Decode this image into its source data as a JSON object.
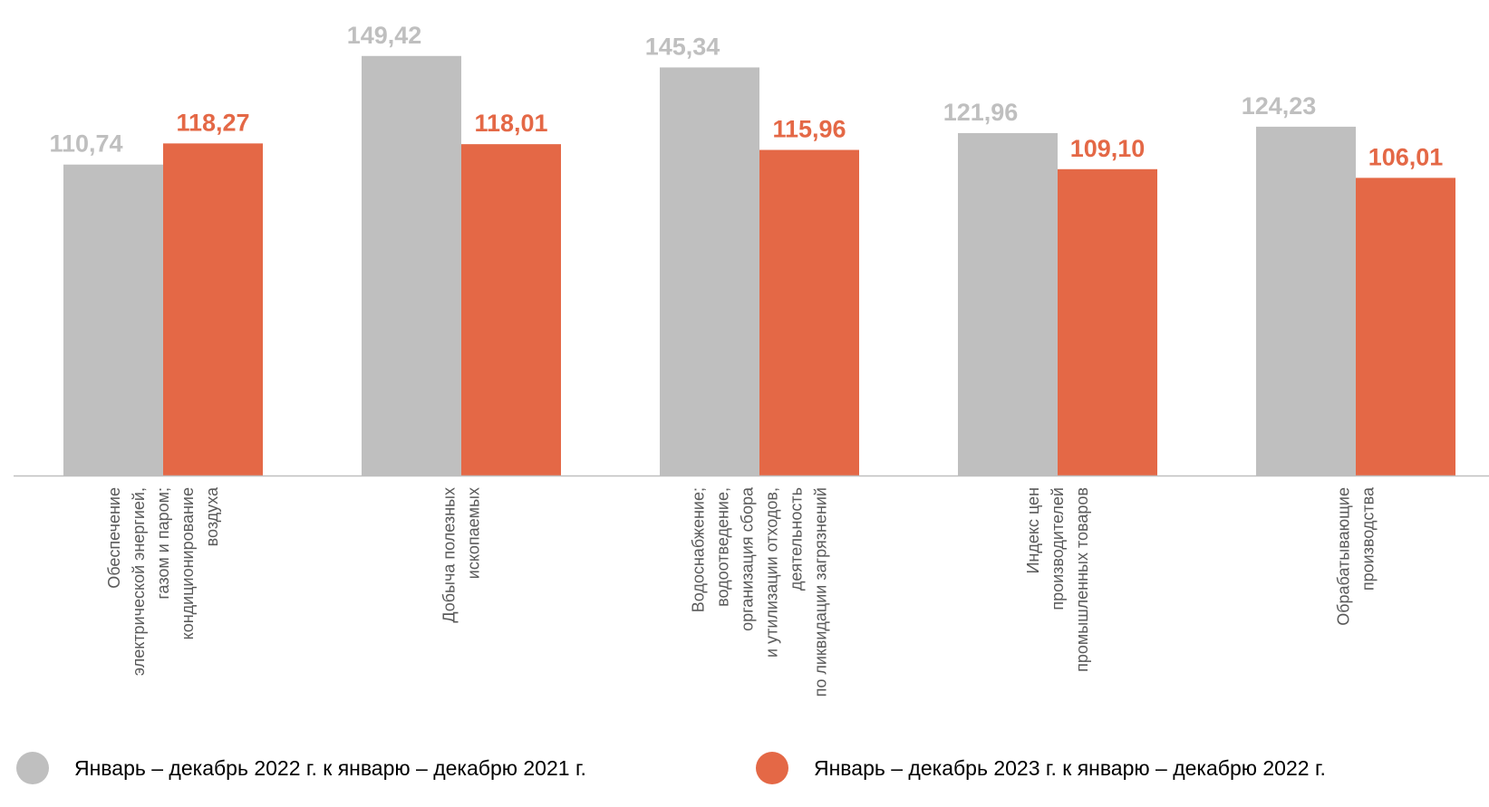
{
  "chart_data": {
    "type": "bar",
    "categories": [
      [
        "Обеспечение",
        "электрической энергией,",
        "газом и паром;",
        "кондиционирование",
        "воздуха"
      ],
      [
        "Добыча полезных",
        "ископаемых"
      ],
      [
        "Водоснабжение;",
        "водоотведение,",
        "организация сбора",
        "и утилизации отходов,",
        "деятельность",
        "по ликвидации загрязнений"
      ],
      [
        "Индекс цен",
        "производителей",
        "промышленных товаров"
      ],
      [
        "Обрабатывающие",
        "производства"
      ]
    ],
    "series": [
      {
        "name": "Январь – декабрь 2022 г. к январю – декабрю 2021 г.",
        "color": "#bfbfbf",
        "values": [
          110.74,
          149.42,
          145.34,
          121.96,
          124.23
        ],
        "labels": [
          "110,74",
          "149,42",
          "145,34",
          "121,96",
          "124,23"
        ]
      },
      {
        "name": "Январь – декабрь 2023 г. к январю – декабрю 2022 г.",
        "color": "#e46846",
        "values": [
          118.27,
          118.01,
          115.96,
          109.1,
          106.01
        ],
        "labels": [
          "118,27",
          "118,01",
          "115,96",
          "109,10",
          "106,01"
        ]
      }
    ],
    "ylim": [
      0,
      150
    ],
    "grid": false,
    "legend_position": "bottom",
    "axis_color": "#bfbfbf",
    "label_colors": [
      "#bfbfbf",
      "#e46846"
    ]
  }
}
